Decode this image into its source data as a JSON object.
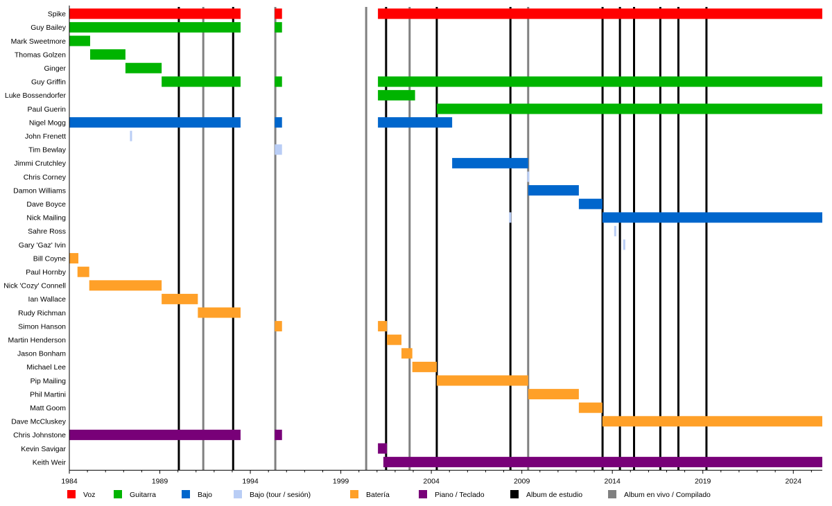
{
  "chart_data": {
    "type": "timeline",
    "title": "",
    "xlabel": "",
    "ylabel": "",
    "xlim": [
      1984,
      2025.6
    ],
    "x_ticks": [
      1984,
      1989,
      1994,
      1999,
      2004,
      2009,
      2014,
      2019,
      2024
    ],
    "colors": {
      "voz": "#ff0000",
      "guitarra": "#00b400",
      "bajo": "#0066cc",
      "bajo_tour": "#b9cdf5",
      "bateria": "#ffa028",
      "piano": "#780078",
      "estudio": "#000000",
      "vivo": "#808080"
    },
    "legend": [
      {
        "key": "voz",
        "label": "Voz"
      },
      {
        "key": "guitarra",
        "label": "Guitarra"
      },
      {
        "key": "bajo",
        "label": "Bajo"
      },
      {
        "key": "bajo_tour",
        "label": "Bajo (tour / sesión)"
      },
      {
        "key": "bateria",
        "label": "Batería"
      },
      {
        "key": "piano",
        "label": "Piano / Teclado"
      },
      {
        "key": "estudio",
        "label": "Album de estudio"
      },
      {
        "key": "vivo",
        "label": "Album en vivo / Compilado"
      }
    ],
    "studio_albums": [
      1990.05,
      1993.05,
      2001.5,
      2004.3,
      2008.37,
      2013.46,
      2014.42,
      2015.2,
      2016.65,
      2017.65,
      2019.2
    ],
    "live_albums": [
      1991.4,
      1995.38,
      2000.4,
      2002.8,
      2009.35
    ],
    "members": [
      {
        "name": "Spike",
        "bars": [
          {
            "role": "voz",
            "start": 1984,
            "end": 1993.46
          },
          {
            "role": "voz",
            "start": 1995.35,
            "end": 1995.75
          },
          {
            "role": "voz",
            "start": 2001.05,
            "end": 2025.6
          }
        ]
      },
      {
        "name": "Guy Bailey",
        "bars": [
          {
            "role": "guitarra",
            "start": 1984,
            "end": 1993.46
          },
          {
            "role": "guitarra",
            "start": 1995.35,
            "end": 1995.75
          }
        ]
      },
      {
        "name": "Mark Sweetmore",
        "bars": [
          {
            "role": "guitarra",
            "start": 1984,
            "end": 1985.15
          }
        ]
      },
      {
        "name": "Thomas Golzen",
        "bars": [
          {
            "role": "guitarra",
            "start": 1985.15,
            "end": 1987.1
          }
        ]
      },
      {
        "name": "Ginger",
        "bars": [
          {
            "role": "guitarra",
            "start": 1987.1,
            "end": 1989.1
          }
        ]
      },
      {
        "name": "Guy Griffin",
        "bars": [
          {
            "role": "guitarra",
            "start": 1989.1,
            "end": 1993.46
          },
          {
            "role": "guitarra",
            "start": 1995.35,
            "end": 1995.75
          },
          {
            "role": "guitarra",
            "start": 2001.05,
            "end": 2025.6
          }
        ]
      },
      {
        "name": "Luke Bossendorfer",
        "bars": [
          {
            "role": "guitarra",
            "start": 2001.05,
            "end": 2003.1
          }
        ]
      },
      {
        "name": "Paul Guerin",
        "bars": [
          {
            "role": "guitarra",
            "start": 2004.3,
            "end": 2025.6
          }
        ]
      },
      {
        "name": "Nigel Mogg",
        "bars": [
          {
            "role": "bajo",
            "start": 1984,
            "end": 1993.46
          },
          {
            "role": "bajo",
            "start": 1995.35,
            "end": 1995.75
          },
          {
            "role": "bajo",
            "start": 2001.05,
            "end": 2005.15
          }
        ]
      },
      {
        "name": "John Frenett",
        "bars": [
          {
            "role": "bajo_tour",
            "start": 1987.35,
            "end": 1987.5
          }
        ]
      },
      {
        "name": "Tim Bewlay",
        "bars": [
          {
            "role": "bajo_tour",
            "start": 1995.35,
            "end": 1995.75
          }
        ]
      },
      {
        "name": "Jimmi Crutchley",
        "bars": [
          {
            "role": "bajo",
            "start": 2005.15,
            "end": 2009.35
          }
        ]
      },
      {
        "name": "Chris Corney",
        "bars": [
          {
            "role": "bajo_tour",
            "start": 2009.3,
            "end": 2009.45
          }
        ]
      },
      {
        "name": "Damon Williams",
        "bars": [
          {
            "role": "bajo",
            "start": 2009.35,
            "end": 2012.15
          }
        ]
      },
      {
        "name": "Dave Boyce",
        "bars": [
          {
            "role": "bajo",
            "start": 2012.15,
            "end": 2013.45
          }
        ]
      },
      {
        "name": "Nick Mailing",
        "bars": [
          {
            "role": "bajo_tour",
            "start": 2008.3,
            "end": 2008.45
          },
          {
            "role": "bajo",
            "start": 2013.45,
            "end": 2025.6
          }
        ]
      },
      {
        "name": "Sahre Ross",
        "bars": [
          {
            "role": "bajo_tour",
            "start": 2014.1,
            "end": 2014.25
          }
        ]
      },
      {
        "name": "Gary 'Gaz' Ivin",
        "bars": [
          {
            "role": "bajo_tour",
            "start": 2014.6,
            "end": 2014.75
          }
        ]
      },
      {
        "name": "Bill Coyne",
        "bars": [
          {
            "role": "bateria",
            "start": 1984,
            "end": 1984.5
          }
        ]
      },
      {
        "name": "Paul Hornby",
        "bars": [
          {
            "role": "bateria",
            "start": 1984.45,
            "end": 1985.1
          }
        ]
      },
      {
        "name": "Nick 'Cozy' Connell",
        "bars": [
          {
            "role": "bateria",
            "start": 1985.1,
            "end": 1989.1
          }
        ]
      },
      {
        "name": "Ian Wallace",
        "bars": [
          {
            "role": "bateria",
            "start": 1989.1,
            "end": 1991.1
          }
        ]
      },
      {
        "name": "Rudy Richman",
        "bars": [
          {
            "role": "bateria",
            "start": 1991.1,
            "end": 1993.46
          }
        ]
      },
      {
        "name": "Simon Hanson",
        "bars": [
          {
            "role": "bateria",
            "start": 1995.35,
            "end": 1995.75
          },
          {
            "role": "bateria",
            "start": 2001.05,
            "end": 2001.55
          }
        ]
      },
      {
        "name": "Martin Henderson",
        "bars": [
          {
            "role": "bateria",
            "start": 2001.55,
            "end": 2002.35
          }
        ]
      },
      {
        "name": "Jason Bonham",
        "bars": [
          {
            "role": "bateria",
            "start": 2002.35,
            "end": 2002.95
          }
        ]
      },
      {
        "name": "Michael Lee",
        "bars": [
          {
            "role": "bateria",
            "start": 2002.95,
            "end": 2004.3
          }
        ]
      },
      {
        "name": "Pip Mailing",
        "bars": [
          {
            "role": "bateria",
            "start": 2004.3,
            "end": 2009.35
          }
        ]
      },
      {
        "name": "Phil Martini",
        "bars": [
          {
            "role": "bateria",
            "start": 2009.35,
            "end": 2012.15
          }
        ]
      },
      {
        "name": "Matt Goom",
        "bars": [
          {
            "role": "bateria",
            "start": 2012.15,
            "end": 2013.45
          }
        ]
      },
      {
        "name": "Dave McCluskey",
        "bars": [
          {
            "role": "bateria",
            "start": 2013.45,
            "end": 2025.6
          }
        ]
      },
      {
        "name": "Chris Johnstone",
        "bars": [
          {
            "role": "piano",
            "start": 1984,
            "end": 1993.46
          },
          {
            "role": "piano",
            "start": 1995.35,
            "end": 1995.75
          }
        ]
      },
      {
        "name": "Kevin Savigar",
        "bars": [
          {
            "role": "piano",
            "start": 2001.05,
            "end": 2001.55
          }
        ]
      },
      {
        "name": "Keith Weir",
        "bars": [
          {
            "role": "piano",
            "start": 2001.35,
            "end": 2025.6
          }
        ]
      }
    ]
  }
}
